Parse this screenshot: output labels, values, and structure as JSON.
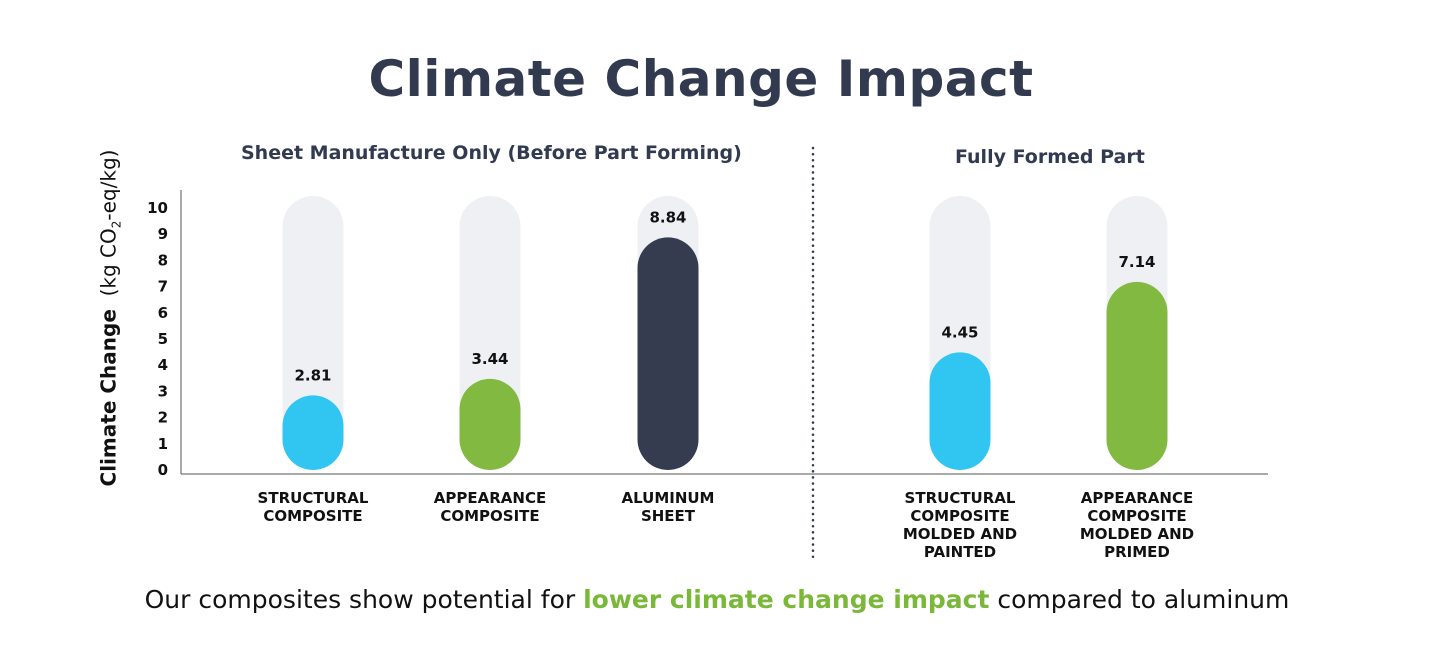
{
  "title": "Climate Change Impact",
  "sections": {
    "left_title": "Sheet Manufacture Only (Before Part Forming)",
    "right_title": "Fully Formed Part"
  },
  "y_axis": {
    "label_main": "Climate Change",
    "label_unit_prefix": "(kg CO",
    "label_unit_sub": "2",
    "label_unit_suffix": "-eq/kg)"
  },
  "footer": {
    "before": "Our composites show potential for ",
    "highlight": "lower climate change impact",
    "after": " compared to aluminum"
  },
  "colors": {
    "blue": "#31c6f2",
    "green": "#82b941",
    "navy": "#353c4f",
    "track": "#eef0f3",
    "text": "#323a4f"
  },
  "chart_data": {
    "type": "bar",
    "ylim": [
      0,
      10
    ],
    "yticks": [
      0,
      1,
      2,
      3,
      4,
      5,
      6,
      7,
      8,
      9,
      10
    ],
    "categories": [
      "STRUCTURAL COMPOSITE",
      "APPEARANCE COMPOSITE",
      "ALUMINUM SHEET",
      "STRUCTURAL COMPOSITE MOLDED AND PAINTED",
      "APPEARANCE COMPOSITE MOLDED AND PRIMED"
    ],
    "category_lines": [
      [
        "STRUCTURAL",
        "COMPOSITE"
      ],
      [
        "APPEARANCE",
        "COMPOSITE"
      ],
      [
        "ALUMINUM",
        "SHEET"
      ],
      [
        "STRUCTURAL",
        "COMPOSITE",
        "MOLDED AND",
        "PAINTED"
      ],
      [
        "APPEARANCE",
        "COMPOSITE",
        "MOLDED AND",
        "PRIMED"
      ]
    ],
    "values": [
      2.81,
      3.44,
      8.84,
      4.45,
      7.14
    ],
    "value_labels": [
      "2.81",
      "3.44",
      "8.84",
      "4.45",
      "7.14"
    ],
    "bar_colors": [
      "blue",
      "green",
      "navy",
      "blue",
      "green"
    ],
    "groups": [
      "Sheet Manufacture Only (Before Part Forming)",
      "Fully Formed Part"
    ],
    "grid": false
  }
}
